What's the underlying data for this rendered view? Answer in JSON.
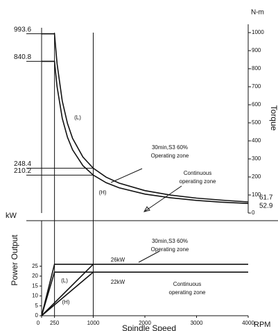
{
  "chart_data": [
    {
      "type": "line",
      "y_label": "Torque",
      "y_unit": "N-m",
      "xlim": [
        0,
        4000
      ],
      "ylim": [
        0,
        1000
      ],
      "yticks": [
        0,
        100,
        200,
        300,
        400,
        500,
        600,
        700,
        800,
        900,
        1000
      ],
      "reference_x": [
        250,
        1000
      ],
      "marked_values": [
        993.6,
        840.8,
        248.4,
        210.2
      ],
      "end_labels": [
        61.7,
        52.9
      ],
      "series": [
        {
          "color": "#000000",
          "x": [
            0,
            250,
            300,
            400,
            500,
            600,
            800,
            1000,
            1250,
            1500,
            2000,
            2500,
            3000,
            3500,
            4000
          ],
          "values": [
            993.6,
            993.6,
            828,
            621,
            496.8,
            414,
            310.5,
            248.4,
            198.7,
            165.6,
            124.2,
            99.4,
            82.8,
            71.0,
            61.7
          ]
        },
        {
          "color": "#000000",
          "x": [
            0,
            250,
            300,
            400,
            500,
            600,
            800,
            1000,
            1250,
            1500,
            2000,
            2500,
            3000,
            3500,
            4000
          ],
          "values": [
            840.8,
            840.8,
            700.7,
            525.5,
            420.4,
            350.3,
            262.8,
            210.2,
            168.2,
            140.1,
            105.1,
            84.1,
            70.1,
            60.1,
            52.9
          ]
        }
      ],
      "annotations": [
        {
          "text": [
            "(L)"
          ]
        },
        {
          "text": [
            "(H)"
          ]
        },
        {
          "text": [
            "30min,S3 60%",
            "Operating zone"
          ]
        },
        {
          "text": [
            "Continuous",
            "operating zone"
          ]
        }
      ]
    },
    {
      "type": "line",
      "y_label": "Power Output",
      "y_unit": "kW",
      "x_label": "Spindle Speed",
      "x_unit": "RPM",
      "xlim": [
        0,
        4000
      ],
      "ylim": [
        0,
        48
      ],
      "xticks": [
        0,
        250,
        1000,
        2000,
        3000,
        4000
      ],
      "yticks": [
        0,
        5,
        10,
        15,
        20,
        25
      ],
      "reference_x": [
        250,
        1000
      ],
      "series": [
        {
          "color": "#000000",
          "x": [
            0,
            250,
            4000
          ],
          "values": [
            0,
            26,
            26
          ]
        },
        {
          "color": "#000000",
          "x": [
            0,
            250,
            4000
          ],
          "values": [
            0,
            22,
            22
          ]
        },
        {
          "color": "#000000",
          "x": [
            0,
            1000
          ],
          "values": [
            0,
            26
          ]
        },
        {
          "color": "#000000",
          "x": [
            0,
            1000
          ],
          "values": [
            0,
            22
          ]
        }
      ],
      "annotations": [
        {
          "text": [
            "30min,S3 60%",
            "Operating zone"
          ]
        },
        {
          "text": [
            "26kW"
          ]
        },
        {
          "text": [
            "22kW"
          ]
        },
        {
          "text": [
            "Continuous",
            "operating zone"
          ]
        },
        {
          "text": [
            "(L)"
          ]
        },
        {
          "text": [
            "(H)"
          ]
        }
      ]
    }
  ]
}
